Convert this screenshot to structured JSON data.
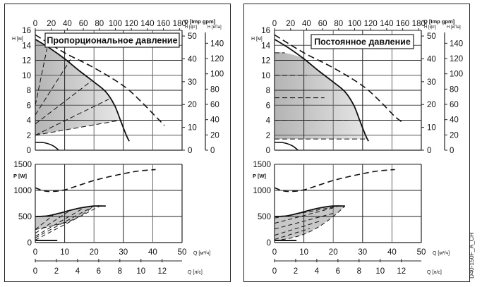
{
  "chart_data": [
    {
      "type": "line",
      "title": "Пропорциональное давление",
      "mode": "proportional",
      "head_chart": {
        "ylabel_left": "H [м]",
        "ylabel_ft": "H [фт]",
        "ylabel_kpa": "H [кПа]",
        "xlabel_top": "Q [Imp gpm]",
        "ylim": [
          0,
          16
        ],
        "yticks": [
          "0",
          "2",
          "4",
          "6",
          "8",
          "10",
          "12",
          "14",
          "16"
        ],
        "ft_ticks": [
          "0",
          "10",
          "20",
          "30",
          "40",
          "50"
        ],
        "kpa_ticks": [
          "0",
          "20",
          "40",
          "60",
          "80",
          "100",
          "120",
          "140"
        ],
        "gpm_ticks": [
          "0",
          "20",
          "40",
          "60",
          "80",
          "100",
          "120",
          "140",
          "160",
          "180"
        ],
        "max_curve": [
          [
            0,
            14.8
          ],
          [
            5,
            13.6
          ],
          [
            10,
            12.2
          ],
          [
            15,
            10.6
          ],
          [
            20,
            9.1
          ],
          [
            24,
            7.8
          ],
          [
            27,
            6.0
          ],
          [
            29,
            4.0
          ],
          [
            31,
            2.0
          ],
          [
            32,
            1.2
          ]
        ],
        "max_dashed": [
          [
            0,
            15.4
          ],
          [
            10,
            13.0
          ],
          [
            20,
            11.0
          ],
          [
            30,
            8.6
          ],
          [
            36,
            6.5
          ],
          [
            41,
            4.5
          ],
          [
            44,
            3.3
          ]
        ],
        "region": [
          [
            0,
            14.8
          ],
          [
            5,
            13.6
          ],
          [
            10,
            12.2
          ],
          [
            15,
            10.6
          ],
          [
            20,
            9.1
          ],
          [
            24,
            7.8
          ],
          [
            27,
            6.0
          ],
          [
            28.5,
            4.0
          ],
          [
            0,
            2.0
          ]
        ],
        "dashed_lines": [
          [
            [
              0,
              6.0
            ],
            [
              4,
              13.6
            ]
          ],
          [
            [
              0,
              4.7
            ],
            [
              12,
              12.1
            ]
          ],
          [
            [
              0,
              3.5
            ],
            [
              19,
              9.2
            ]
          ],
          [
            [
              0,
              2.0
            ],
            [
              25,
              6.8
            ]
          ],
          [
            [
              0,
              2.0
            ],
            [
              29,
              4.0
            ]
          ]
        ],
        "min_curve": [
          [
            0,
            1.05
          ],
          [
            3,
            1.0
          ],
          [
            6,
            0.6
          ],
          [
            8,
            0
          ]
        ]
      },
      "power_chart": {
        "ylabel": "P [W]",
        "ylim": [
          0,
          1500
        ],
        "yticks": [
          "0",
          "500",
          "1000",
          "1500"
        ],
        "xticks": [
          "0",
          "10",
          "20",
          "30",
          "40",
          "50"
        ],
        "xlabel": "Q [м³/ч]",
        "ls_ticks": [
          "0",
          "2",
          "4",
          "6",
          "8",
          "10",
          "12"
        ],
        "ls_label": "Q [л/с]",
        "max_dashed": [
          [
            0,
            1050
          ],
          [
            3,
            990
          ],
          [
            6,
            980
          ],
          [
            10,
            1010
          ],
          [
            15,
            1100
          ],
          [
            20,
            1190
          ],
          [
            25,
            1260
          ],
          [
            30,
            1320
          ],
          [
            35,
            1370
          ],
          [
            41,
            1400
          ]
        ],
        "max_curve": [
          [
            0,
            500
          ],
          [
            4,
            510
          ],
          [
            8,
            560
          ],
          [
            12,
            620
          ],
          [
            16,
            670
          ],
          [
            20,
            700
          ],
          [
            24,
            700
          ]
        ],
        "lower_bound": [
          [
            0,
            250
          ],
          [
            5,
            310
          ],
          [
            10,
            380
          ],
          [
            15,
            500
          ],
          [
            20,
            700
          ]
        ],
        "dashed_lines": [
          [
            [
              0,
              250
            ],
            [
              6,
              520
            ]
          ],
          [
            [
              0,
              180
            ],
            [
              12,
              620
            ]
          ],
          [
            [
              0,
              120
            ],
            [
              17,
              680
            ]
          ],
          [
            [
              0,
              90
            ],
            [
              20,
              700
            ]
          ],
          [
            [
              0,
              50
            ],
            [
              22,
              700
            ]
          ]
        ],
        "min_curve": [
          [
            0,
            40
          ],
          [
            7.5,
            40
          ]
        ]
      }
    },
    {
      "type": "line",
      "title": "Постоянное давление",
      "mode": "constant",
      "head_chart": {
        "ylabel_left": "H [м]",
        "ylabel_ft": "H [фт]",
        "ylabel_kpa": "H [кПа]",
        "xlabel_top": "Q [Imp gpm]",
        "ylim": [
          0,
          16
        ],
        "yticks": [
          "0",
          "2",
          "4",
          "6",
          "8",
          "10",
          "12",
          "14",
          "16"
        ],
        "ft_ticks": [
          "0",
          "10",
          "20",
          "30",
          "40",
          "50"
        ],
        "kpa_ticks": [
          "0",
          "20",
          "40",
          "60",
          "80",
          "100",
          "120",
          "140"
        ],
        "gpm_ticks": [
          "0",
          "20",
          "40",
          "60",
          "80",
          "100",
          "120",
          "140",
          "160",
          "180"
        ],
        "max_curve": [
          [
            0,
            14.8
          ],
          [
            5,
            13.6
          ],
          [
            10,
            12.2
          ],
          [
            15,
            10.6
          ],
          [
            20,
            9.1
          ],
          [
            24,
            7.8
          ],
          [
            27,
            6.0
          ],
          [
            29,
            4.0
          ],
          [
            31,
            2.0
          ],
          [
            32,
            1.2
          ]
        ],
        "max_dashed": [
          [
            0,
            15.4
          ],
          [
            10,
            13.0
          ],
          [
            20,
            11.0
          ],
          [
            30,
            8.6
          ],
          [
            36,
            6.5
          ],
          [
            41,
            4.5
          ],
          [
            44,
            3.6
          ]
        ],
        "region": [
          [
            0,
            13
          ],
          [
            3.5,
            13
          ],
          [
            10,
            12.2
          ],
          [
            15,
            10.6
          ],
          [
            20,
            9.1
          ],
          [
            24,
            7.8
          ],
          [
            27,
            6.0
          ],
          [
            29,
            4.0
          ],
          [
            31,
            2.0
          ],
          [
            31.5,
            1.5
          ],
          [
            0,
            1.5
          ]
        ],
        "dashed_lines": [
          [
            [
              0,
              13
            ],
            [
              3.5,
              13
            ]
          ],
          [
            [
              0,
              10
            ],
            [
              11,
              10
            ]
          ],
          [
            [
              0,
              7
            ],
            [
              17,
              7
            ]
          ],
          [
            [
              0,
              4
            ],
            [
              25,
              4
            ]
          ],
          [
            [
              0,
              1.5
            ],
            [
              31.5,
              1.5
            ]
          ]
        ],
        "min_curve": [
          [
            0,
            1.05
          ],
          [
            3,
            1.0
          ],
          [
            6,
            0.6
          ],
          [
            8,
            0
          ]
        ]
      },
      "power_chart": {
        "ylabel": "P [W]",
        "ylim": [
          0,
          1500
        ],
        "yticks": [
          "0",
          "500",
          "1000",
          "1500"
        ],
        "xticks": [
          "0",
          "10",
          "20",
          "30",
          "40",
          "50"
        ],
        "xlabel": "Q [м³/ч]",
        "ls_ticks": [
          "0",
          "2",
          "4",
          "6",
          "8",
          "10",
          "12"
        ],
        "ls_label": "Q [л/с]",
        "max_dashed": [
          [
            0,
            1050
          ],
          [
            3,
            990
          ],
          [
            6,
            980
          ],
          [
            10,
            1010
          ],
          [
            15,
            1100
          ],
          [
            20,
            1190
          ],
          [
            25,
            1260
          ],
          [
            30,
            1320
          ],
          [
            35,
            1370
          ],
          [
            41,
            1400
          ]
        ],
        "max_curve": [
          [
            0,
            500
          ],
          [
            4,
            510
          ],
          [
            8,
            560
          ],
          [
            12,
            620
          ],
          [
            16,
            670
          ],
          [
            20,
            700
          ],
          [
            24,
            700
          ]
        ],
        "lower_bound": [
          [
            0,
            40
          ],
          [
            5,
            80
          ],
          [
            10,
            160
          ],
          [
            15,
            300
          ],
          [
            20,
            500
          ],
          [
            24,
            700
          ]
        ],
        "dashed_lines": [
          [
            [
              0,
              470
            ],
            [
              22,
              700
            ]
          ],
          [
            [
              0,
              370
            ],
            [
              21,
              680
            ]
          ],
          [
            [
              0,
              260
            ],
            [
              20,
              560
            ]
          ],
          [
            [
              0,
              140
            ],
            [
              16,
              420
            ]
          ],
          [
            [
              0,
              60
            ],
            [
              12,
              270
            ]
          ]
        ],
        "min_curve": [
          [
            0,
            40
          ],
          [
            7.5,
            40
          ]
        ]
      }
    }
  ],
  "figure_code": "D40-150F_A_CH"
}
